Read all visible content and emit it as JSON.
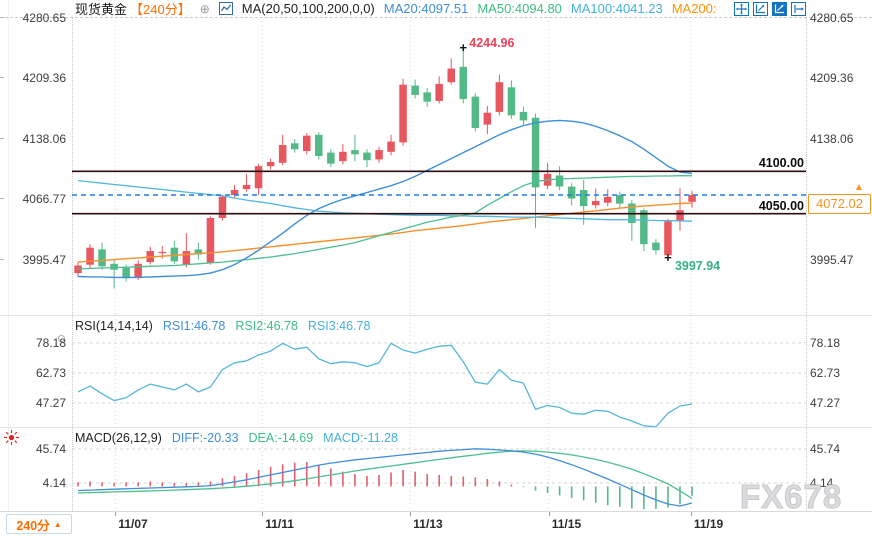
{
  "header": {
    "symbol": "现货黄金",
    "period_tag": "【240分】",
    "settings_icon": "⊕",
    "ma_settings": "MA(20,50,100,200,0,0)",
    "ma20_label": "MA20:4097.51",
    "ma50_label": "MA50:4094.80",
    "ma100_label": "MA100:4041.23",
    "ma200_label": "MA200:"
  },
  "toolbar": {
    "icons": [
      "move-cross-icon",
      "axis-scale-icon",
      "axis-scale-active-icon",
      "pan-right-icon"
    ]
  },
  "rsi": {
    "title": "RSI(14,14,14)",
    "rsi1_label": "RSI1:46.78",
    "rsi2_label": "RSI2:46.78",
    "rsi3_label": "RSI3:46.78"
  },
  "macd": {
    "title": "MACD(26,12,9)",
    "diff_label": "DIFF:-20.33",
    "dea_label": "DEA:-14.69",
    "macd_label": "MACD:-11.28"
  },
  "annotations": {
    "high": {
      "label": "4244.96",
      "value": 4244.96,
      "index": 32
    },
    "low": {
      "label": "3997.94",
      "value": 3997.94,
      "index": 49
    }
  },
  "current_price": {
    "label": "4072.02",
    "value": 4072.02,
    "arrow": "▲"
  },
  "levels": [
    {
      "label": "4100.00",
      "value": 4100.0
    },
    {
      "label": "4050.00",
      "value": 4050.0
    }
  ],
  "bottom": {
    "period": "240分",
    "arrow": "▲"
  },
  "watermark": "FX678",
  "colors": {
    "up": "#e8565f",
    "down": "#53b987",
    "ma20": "#3f8fd8",
    "ma50": "#4fbe8f",
    "ma100": "#52b7dd",
    "ma200": "#f78f2d",
    "level_line": "#2a0d0e",
    "price_line": "#1e7ce0",
    "price_box": "#f7941d",
    "rsi_line": "#56b6d8",
    "diff_line": "#3f8fd8",
    "dea_line": "#4fbe8f",
    "hist_up": "#e0606c",
    "hist_down": "#53b987",
    "grid": "#d8d8d8",
    "dashed_grid": "#d4d4d4"
  },
  "chart_data": {
    "type": "candlestick",
    "title": "现货黄金 240分 (Spot Gold 240-minute)",
    "price_axis_ticks": [
      {
        "label": "4280.65",
        "value": 4280.65
      },
      {
        "label": "4209.36",
        "value": 4209.36
      },
      {
        "label": "4138.06",
        "value": 4138.06
      },
      {
        "label": "4066.77",
        "value": 4066.77
      },
      {
        "label": "3995.47",
        "value": 3995.47
      }
    ],
    "x_ticks": [
      {
        "label": "11/07",
        "pos": 3.1
      },
      {
        "label": "11/11",
        "pos": 15.3
      },
      {
        "label": "11/13",
        "pos": 27.6
      },
      {
        "label": "11/15",
        "pos": 39.1
      },
      {
        "label": "11/19",
        "pos": 50.9
      }
    ],
    "horizontal_levels": [
      4100.0,
      4050.0
    ],
    "current_price": 4072.02,
    "high_annotation": 4244.96,
    "low_annotation": 3997.94,
    "candles_ohlc": [
      [
        3980,
        3993,
        3976,
        3989
      ],
      [
        3990,
        4014,
        3986,
        4010
      ],
      [
        4008,
        4016,
        3984,
        3988
      ],
      [
        3991,
        3996,
        3962,
        3984
      ],
      [
        3986,
        3990,
        3970,
        3974
      ],
      [
        3975,
        3995,
        3972,
        3991
      ],
      [
        3993,
        4011,
        3990,
        4006
      ],
      [
        4004,
        4012,
        3997,
        4005
      ],
      [
        4010,
        4018,
        3991,
        3994
      ],
      [
        3990,
        4027,
        3987,
        4006
      ],
      [
        4008,
        4016,
        3996,
        4002
      ],
      [
        3992,
        4047,
        3990,
        4045
      ],
      [
        4045,
        4072,
        4042,
        4070
      ],
      [
        4072,
        4084,
        4068,
        4078
      ],
      [
        4079,
        4097,
        4076,
        4084
      ],
      [
        4080,
        4109,
        4072,
        4106
      ],
      [
        4106,
        4115,
        4102,
        4111
      ],
      [
        4110,
        4143,
        4107,
        4131
      ],
      [
        4133,
        4138,
        4122,
        4126
      ],
      [
        4124,
        4145,
        4120,
        4142
      ],
      [
        4143,
        4146,
        4114,
        4118
      ],
      [
        4122,
        4126,
        4105,
        4109
      ],
      [
        4112,
        4132,
        4108,
        4123
      ],
      [
        4125,
        4143,
        4112,
        4120
      ],
      [
        4122,
        4126,
        4105,
        4113
      ],
      [
        4114,
        4129,
        4110,
        4125
      ],
      [
        4123,
        4143,
        4119,
        4135
      ],
      [
        4134,
        4209,
        4130,
        4202
      ],
      [
        4201,
        4208,
        4186,
        4190
      ],
      [
        4193,
        4198,
        4176,
        4182
      ],
      [
        4183,
        4212,
        4180,
        4203
      ],
      [
        4205,
        4233,
        4202,
        4221
      ],
      [
        4223,
        4244.96,
        4180,
        4185
      ],
      [
        4188,
        4192,
        4147,
        4151
      ],
      [
        4155,
        4177,
        4144,
        4169
      ],
      [
        4170,
        4214,
        4166,
        4205
      ],
      [
        4199,
        4207,
        4162,
        4166
      ],
      [
        4170,
        4176,
        4155,
        4160
      ],
      [
        4163,
        4168,
        4033,
        4081
      ],
      [
        4083,
        4110,
        4079,
        4097
      ],
      [
        4095,
        4106,
        4078,
        4082
      ],
      [
        4082,
        4086,
        4060,
        4068
      ],
      [
        4078,
        4090,
        4037,
        4059
      ],
      [
        4060,
        4080,
        4056,
        4065
      ],
      [
        4063,
        4079,
        4059,
        4070
      ],
      [
        4072,
        4076,
        4056,
        4062
      ],
      [
        4062,
        4066,
        4018,
        4039
      ],
      [
        4054,
        4056,
        4006,
        4014
      ],
      [
        4016,
        4020,
        4002,
        4007
      ],
      [
        4001,
        4044,
        3997.94,
        4041
      ],
      [
        4041,
        4080,
        4030,
        4054
      ],
      [
        4064,
        4077,
        4057,
        4072.02
      ]
    ],
    "ma20": [
      3976,
      3975.5,
      3975.5,
      3975,
      3975,
      3975,
      3975.5,
      3976,
      3976.5,
      3977,
      3978,
      3980,
      3984,
      3990,
      3998,
      4007,
      4017,
      4027,
      4038,
      4048,
      4056,
      4062,
      4067,
      4071,
      4075,
      4079,
      4083,
      4088,
      4094,
      4101,
      4108,
      4115,
      4122,
      4129,
      4136,
      4143,
      4149,
      4154,
      4157,
      4159,
      4160,
      4159,
      4157,
      4153,
      4148,
      4142,
      4135,
      4126,
      4116,
      4106,
      4099,
      4097.5
    ],
    "ma50": [
      3985,
      3985.5,
      3986,
      3986.5,
      3987,
      3987.5,
      3988,
      3988.5,
      3989,
      3990,
      3991,
      3992,
      3993,
      3994.5,
      3996,
      3997.5,
      3999,
      4001,
      4003,
      4005.5,
      4008,
      4010.5,
      4013,
      4016,
      4020,
      4024,
      4028,
      4032,
      4036,
      4040,
      4043,
      4046,
      4048,
      4051,
      4060,
      4068,
      4076,
      4083,
      4088,
      4090,
      4091,
      4091.5,
      4092,
      4092.5,
      4093,
      4093.5,
      4094,
      4094,
      4094.5,
      4094.5,
      4094.8,
      4094.8
    ],
    "ma100": [
      4089,
      4087.5,
      4086,
      4084.5,
      4083,
      4081.5,
      4080,
      4078.5,
      4077,
      4075.5,
      4074,
      4072.5,
      4071,
      4068.5,
      4066,
      4064,
      4062,
      4059.5,
      4057,
      4055,
      4053,
      4052,
      4051,
      4050.5,
      4050,
      4049.5,
      4049,
      4048.5,
      4048,
      4048,
      4048,
      4047.5,
      4047.5,
      4047,
      4047,
      4046.5,
      4046,
      4046,
      4046,
      4045.5,
      4045,
      4044.5,
      4044,
      4043.5,
      4043,
      4043,
      4043,
      4042.5,
      4042,
      4041.8,
      4041.5,
      4041.2
    ],
    "ma200": [
      3993,
      3994,
      3995,
      3996,
      3997,
      3998,
      3999,
      4000,
      4001,
      4002,
      4003,
      4004,
      4005,
      4006.5,
      4008,
      4009.5,
      4011,
      4012.5,
      4014,
      4015.5,
      4017,
      4018.5,
      4020,
      4021.5,
      4023,
      4024.5,
      4026,
      4028,
      4030,
      4031.5,
      4033,
      4034.5,
      4036,
      4038,
      4040,
      4041.5,
      4043,
      4044.5,
      4046,
      4047.5,
      4049,
      4050.5,
      4052,
      4053.5,
      4055,
      4056.5,
      4058,
      4059,
      4060,
      4061,
      4062,
      4062.5
    ],
    "rsi": {
      "axis_ticks": [
        {
          "label": "78.18",
          "value": 78.18
        },
        {
          "label": "62.73",
          "value": 62.73
        },
        {
          "label": "47.27",
          "value": 47.27
        }
      ],
      "values": [
        53,
        56,
        52,
        48.5,
        50,
        54,
        57,
        55.5,
        54,
        57,
        53,
        55.5,
        64.5,
        68,
        69,
        72,
        74,
        78,
        75,
        76,
        70,
        67.5,
        68.5,
        68,
        66,
        68,
        78,
        74.5,
        73,
        75,
        76.5,
        77,
        68.5,
        58,
        57,
        64.5,
        59,
        57.5,
        44,
        46,
        45,
        42,
        41.5,
        43.5,
        43,
        40,
        38,
        35.5,
        35,
        42,
        45.7,
        46.78
      ]
    },
    "macd": {
      "axis_ticks": [
        {
          "label": "45.74",
          "value": 45.74
        },
        {
          "label": "4.14",
          "value": 4.14
        }
      ],
      "diff": [
        -5,
        -4.5,
        -4,
        -3.5,
        -3,
        -2.5,
        -2,
        -1.5,
        -1,
        -0.5,
        0,
        1,
        3,
        5.5,
        8,
        11,
        14,
        17,
        20,
        23,
        26,
        28.5,
        30.5,
        32.5,
        34,
        35.5,
        37,
        38.5,
        40,
        41.5,
        43,
        44,
        45,
        46,
        45.5,
        44.5,
        43.5,
        42,
        39.5,
        36,
        31.5,
        26.5,
        21,
        15,
        9,
        2.5,
        -4,
        -10.5,
        -16.5,
        -21.5,
        -24,
        -20.33
      ],
      "dea": [
        -8,
        -7.6,
        -7.2,
        -6.8,
        -6.4,
        -6,
        -5.5,
        -5,
        -4.5,
        -4,
        -3.4,
        -2.8,
        -2,
        -1,
        0.2,
        1.6,
        3.2,
        5,
        7,
        9.2,
        11.6,
        14,
        16.4,
        18.8,
        21,
        23,
        25,
        27,
        29,
        31,
        33,
        35,
        36.8,
        38.5,
        40.5,
        42,
        43,
        43.4,
        43,
        42,
        40.5,
        38.5,
        36,
        33,
        29.5,
        25.5,
        21,
        15.5,
        9.5,
        3,
        -5.5,
        -14.69
      ],
      "hist": [
        5,
        6,
        5,
        4,
        5,
        5,
        6,
        5,
        4,
        4,
        5,
        6,
        10,
        13,
        16,
        20,
        24,
        27,
        29,
        30,
        26,
        22,
        18,
        15,
        13,
        14,
        17,
        20,
        18,
        15,
        14,
        13,
        12,
        11,
        9,
        6,
        2,
        -1,
        -5,
        -8,
        -11,
        -14,
        -17,
        -20,
        -23,
        -25,
        -27,
        -28,
        -27.5,
        -26,
        -22,
        -11.28
      ]
    }
  }
}
